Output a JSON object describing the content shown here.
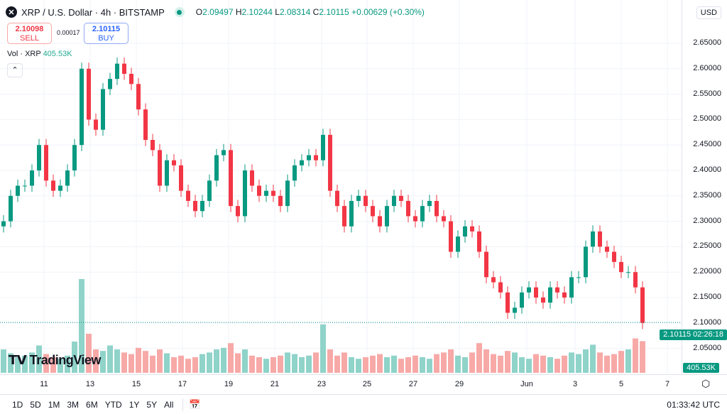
{
  "header": {
    "symbol_icon": "xrp-logo",
    "title": "XRP / U.S. Dollar · 4h · BITSTAMP",
    "status": "market-open",
    "ohlc": {
      "o": "2.09497",
      "h": "2.10244",
      "l": "2.08314",
      "c": "2.10115",
      "change": "+0.00629 (+0.30%)"
    }
  },
  "trade": {
    "sell_price": "2.10098",
    "sell_label": "SELL",
    "spread": "0.00017",
    "buy_price": "2.10115",
    "buy_label": "BUY"
  },
  "volume_legend": {
    "label": "Vol · XRP",
    "value": "405.53K"
  },
  "currency": "USD",
  "logo_text": "TradingView",
  "last_price": {
    "price": "2.10115",
    "countdown": "02:26:18"
  },
  "volume_tag": "405.53K",
  "price_ticks": [
    "2.65000",
    "2.60000",
    "2.55000",
    "2.50000",
    "2.45000",
    "2.40000",
    "2.35000",
    "2.30000",
    "2.25000",
    "2.20000",
    "2.15000",
    "2.10000",
    "2.05000"
  ],
  "date_ticks": [
    "11",
    "13",
    "15",
    "17",
    "19",
    "21",
    "23",
    "25",
    "27",
    "29",
    "Jun",
    "3",
    "5",
    "7"
  ],
  "ranges": [
    "1D",
    "5D",
    "1M",
    "3M",
    "6M",
    "YTD",
    "1Y",
    "5Y",
    "All"
  ],
  "clock": "01:33:42 UTC",
  "colors": {
    "up": "#089981",
    "down": "#f23645",
    "up_vol": "#8fd3c9",
    "down_vol": "#f7a9a7"
  },
  "chart_data": {
    "type": "candlestick",
    "ylim": [
      2.03,
      2.68
    ],
    "closes": [
      2.3,
      2.35,
      2.37,
      2.37,
      2.4,
      2.45,
      2.38,
      2.36,
      2.37,
      2.4,
      2.45,
      2.6,
      2.5,
      2.48,
      2.56,
      2.58,
      2.61,
      2.59,
      2.57,
      2.52,
      2.46,
      2.44,
      2.37,
      2.42,
      2.41,
      2.36,
      2.34,
      2.32,
      2.34,
      2.38,
      2.43,
      2.44,
      2.33,
      2.31,
      2.4,
      2.37,
      2.35,
      2.36,
      2.35,
      2.33,
      2.38,
      2.41,
      2.42,
      2.43,
      2.42,
      2.47,
      2.36,
      2.33,
      2.29,
      2.34,
      2.35,
      2.33,
      2.31,
      2.29,
      2.33,
      2.35,
      2.34,
      2.31,
      2.3,
      2.33,
      2.34,
      2.31,
      2.3,
      2.24,
      2.27,
      2.29,
      2.28,
      2.24,
      2.19,
      2.18,
      2.16,
      2.12,
      2.13,
      2.16,
      2.17,
      2.15,
      2.14,
      2.17,
      2.16,
      2.15,
      2.19,
      2.19,
      2.25,
      2.28,
      2.25,
      2.24,
      2.22,
      2.2,
      2.2,
      2.17,
      2.1
    ],
    "volumes_k": [
      300,
      250,
      200,
      220,
      260,
      350,
      240,
      200,
      180,
      220,
      400,
      1200,
      500,
      300,
      280,
      350,
      300,
      260,
      240,
      320,
      280,
      220,
      300,
      250,
      200,
      220,
      180,
      200,
      240,
      260,
      300,
      320,
      380,
      250,
      300,
      220,
      200,
      180,
      200,
      220,
      260,
      240,
      200,
      220,
      260,
      620,
      300,
      220,
      260,
      200,
      180,
      200,
      220,
      240,
      200,
      220,
      180,
      200,
      220,
      200,
      180,
      240,
      260,
      300,
      220,
      200,
      260,
      380,
      300,
      240,
      220,
      280,
      260,
      200,
      180,
      240,
      220,
      200,
      180,
      220,
      260,
      240,
      300,
      360,
      260,
      220,
      240,
      280,
      300,
      440,
      405.53
    ]
  }
}
